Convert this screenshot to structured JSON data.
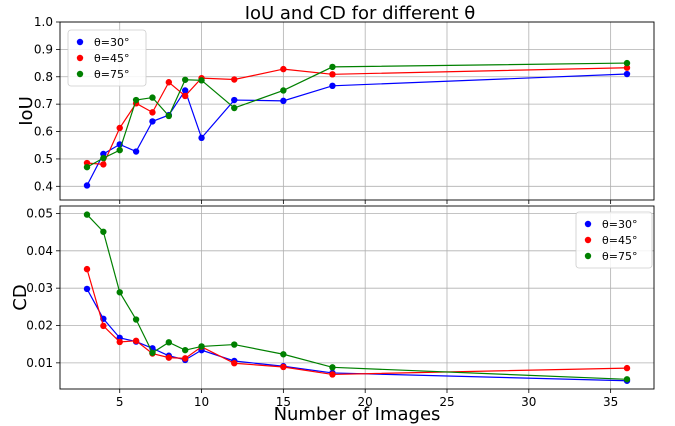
{
  "figure": {
    "title": "IoU and CD for different θ",
    "xlabel": "Number of Images"
  },
  "colors": {
    "θ=30°": "#0000ff",
    "θ=45°": "#ff0000",
    "θ=75°": "#008000"
  },
  "chart_data": [
    {
      "type": "line",
      "title": "IoU and CD for different θ",
      "xlabel": "",
      "ylabel": "IoU",
      "xlim": [
        1.35,
        37.65
      ],
      "ylim": [
        0.35,
        1.0
      ],
      "xticks": [
        5,
        10,
        15,
        20,
        25,
        30,
        35
      ],
      "yticks": [
        0.4,
        0.5,
        0.6,
        0.7,
        0.8,
        0.9,
        1.0
      ],
      "ytick_labels": [
        "0.4",
        "0.5",
        "0.6",
        "0.7",
        "0.8",
        "0.9",
        "1.0"
      ],
      "grid": true,
      "legend_position": "upper-left",
      "x": [
        3,
        4,
        5,
        6,
        7,
        8,
        9,
        10,
        12,
        15,
        18,
        36
      ],
      "series": [
        {
          "name": "θ=30°",
          "color": "#0000ff",
          "values": [
            0.403,
            0.518,
            0.553,
            0.527,
            0.637,
            0.66,
            0.75,
            0.577,
            0.715,
            0.712,
            0.767,
            0.81
          ]
        },
        {
          "name": "θ=45°",
          "color": "#ff0000",
          "values": [
            0.485,
            0.48,
            0.613,
            0.703,
            0.67,
            0.78,
            0.73,
            0.795,
            0.79,
            0.828,
            0.809,
            0.833
          ]
        },
        {
          "name": "θ=75°",
          "color": "#008000",
          "values": [
            0.47,
            0.503,
            0.532,
            0.715,
            0.724,
            0.657,
            0.789,
            0.787,
            0.686,
            0.75,
            0.836,
            0.85
          ]
        }
      ]
    },
    {
      "type": "line",
      "xlabel": "Number of Images",
      "ylabel": "CD",
      "xlim": [
        1.35,
        37.65
      ],
      "ylim": [
        0.003,
        0.052
      ],
      "xticks": [
        5,
        10,
        15,
        20,
        25,
        30,
        35
      ],
      "xtick_labels": [
        "5",
        "10",
        "15",
        "20",
        "25",
        "30",
        "35"
      ],
      "yticks": [
        0.01,
        0.02,
        0.03,
        0.04,
        0.05
      ],
      "ytick_labels": [
        "0.01",
        "0.02",
        "0.03",
        "0.04",
        "0.05"
      ],
      "grid": true,
      "legend_position": "upper-right",
      "x": [
        3,
        4,
        5,
        6,
        7,
        8,
        9,
        10,
        12,
        15,
        18,
        36
      ],
      "series": [
        {
          "name": "θ=30°",
          "color": "#0000ff",
          "values": [
            0.0298,
            0.0218,
            0.0167,
            0.0157,
            0.0139,
            0.0119,
            0.0108,
            0.0134,
            0.0105,
            0.0091,
            0.0073,
            0.0052
          ]
        },
        {
          "name": "θ=45°",
          "color": "#ff0000",
          "values": [
            0.0351,
            0.0199,
            0.0156,
            0.0159,
            0.0125,
            0.0114,
            0.0112,
            0.0143,
            0.0099,
            0.0089,
            0.0069,
            0.0086
          ]
        },
        {
          "name": "θ=75°",
          "color": "#008000",
          "values": [
            0.0497,
            0.0451,
            0.0289,
            0.0216,
            0.0127,
            0.0155,
            0.0134,
            0.0144,
            0.0149,
            0.0123,
            0.0088,
            0.0056
          ]
        }
      ]
    }
  ]
}
